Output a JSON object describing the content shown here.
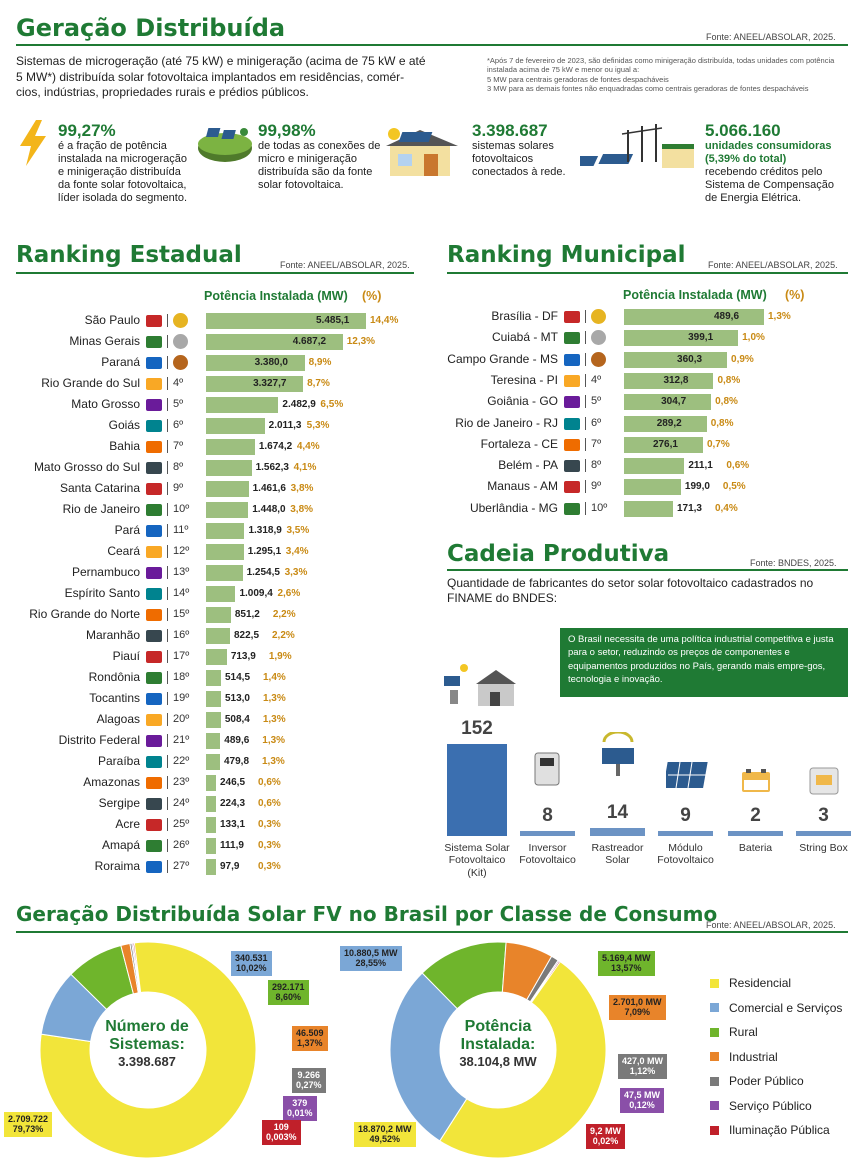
{
  "header": {
    "title": "Geração Distribuída",
    "source": "Fonte: ANEEL/ABSOLAR, 2025.",
    "intro": "Sistemas de microgeração (até 75 kW) e minigeração (acima de 75 kW e até 5 MW*) distribuída solar fotovoltaica implantados em residências, comér-cios, indústrias, propriedades rurais e prédios públicos.",
    "footnote_1": "*Após 7 de fevereiro de 2023, são definidas como minigeração distribuída, todas unidades com potência instalada acima de 75 kW e menor ou igual a:",
    "footnote_2": "5 MW para centrais geradoras de fontes despacháveis",
    "footnote_3": "3 MW para as demais fontes não enquadradas como centrais geradoras de fontes despacháveis"
  },
  "stats": [
    {
      "value": "99,27%",
      "text": "é a fração de potência instalada na microgeração e minigeração distribuída da fonte solar fotovoltaica, líder isolada do segmento.",
      "icon": "lightning-icon"
    },
    {
      "value": "99,98%",
      "text": "de todas as conexões de micro e minigeração distribuída são da fonte solar fotovoltaica.",
      "icon": "globe-solar-icon"
    },
    {
      "value": "3.398.687",
      "text": "sistemas solares fotovoltaicos conectados à rede.",
      "icon": "solar-house-icon"
    },
    {
      "value": "5.066.160",
      "text_bold": "unidades consumidoras (5,39% do total)",
      "text": "recebendo créditos pelo Sistema de Compensação de Energia Elétrica.",
      "icon": "power-grid-icon"
    }
  ],
  "ranking_estadual": {
    "title": "Ranking Estadual",
    "source": "Fonte: ANEEL/ABSOLAR, 2025.",
    "col_header": "Potência Instalada (MW)",
    "pct_header": "(%)",
    "rows": [
      {
        "name": "São Paulo",
        "pos": "",
        "value": 5485.1,
        "label": "5.485,1",
        "pct": "14,4%"
      },
      {
        "name": "Minas Gerais",
        "pos": "",
        "value": 4687.2,
        "label": "4.687,2",
        "pct": "12,3%"
      },
      {
        "name": "Paraná",
        "pos": "",
        "value": 3380.0,
        "label": "3.380,0",
        "pct": "8,9%"
      },
      {
        "name": "Rio Grande do Sul",
        "pos": "4º",
        "value": 3327.7,
        "label": "3.327,7",
        "pct": "8,7%"
      },
      {
        "name": "Mato Grosso",
        "pos": "5º",
        "value": 2482.9,
        "label": "2.482,9",
        "pct": "6,5%"
      },
      {
        "name": "Goiás",
        "pos": "6º",
        "value": 2011.3,
        "label": "2.011,3",
        "pct": "5,3%"
      },
      {
        "name": "Bahia",
        "pos": "7º",
        "value": 1674.2,
        "label": "1.674,2",
        "pct": "4,4%"
      },
      {
        "name": "Mato Grosso do Sul",
        "pos": "8º",
        "value": 1562.3,
        "label": "1.562,3",
        "pct": "4,1%"
      },
      {
        "name": "Santa Catarina",
        "pos": "9º",
        "value": 1461.6,
        "label": "1.461,6",
        "pct": "3,8%"
      },
      {
        "name": "Rio de Janeiro",
        "pos": "10º",
        "value": 1448.0,
        "label": "1.448,0",
        "pct": "3,8%"
      },
      {
        "name": "Pará",
        "pos": "11º",
        "value": 1318.9,
        "label": "1.318,9",
        "pct": "3,5%"
      },
      {
        "name": "Ceará",
        "pos": "12º",
        "value": 1295.1,
        "label": "1.295,1",
        "pct": "3,4%"
      },
      {
        "name": "Pernambuco",
        "pos": "13º",
        "value": 1254.5,
        "label": "1.254,5",
        "pct": "3,3%"
      },
      {
        "name": "Espírito Santo",
        "pos": "14º",
        "value": 1009.4,
        "label": "1.009,4",
        "pct": "2,6%"
      },
      {
        "name": "Rio Grande do Norte",
        "pos": "15º",
        "value": 851.2,
        "label": "851,2",
        "pct": "2,2%"
      },
      {
        "name": "Maranhão",
        "pos": "16º",
        "value": 822.5,
        "label": "822,5",
        "pct": "2,2%"
      },
      {
        "name": "Piauí",
        "pos": "17º",
        "value": 713.9,
        "label": "713,9",
        "pct": "1,9%"
      },
      {
        "name": "Rondônia",
        "pos": "18º",
        "value": 514.5,
        "label": "514,5",
        "pct": "1,4%"
      },
      {
        "name": "Tocantins",
        "pos": "19º",
        "value": 513.0,
        "label": "513,0",
        "pct": "1,3%"
      },
      {
        "name": "Alagoas",
        "pos": "20º",
        "value": 508.4,
        "label": "508,4",
        "pct": "1,3%"
      },
      {
        "name": "Distrito Federal",
        "pos": "21º",
        "value": 489.6,
        "label": "489,6",
        "pct": "1,3%"
      },
      {
        "name": "Paraíba",
        "pos": "22º",
        "value": 479.8,
        "label": "479,8",
        "pct": "1,3%"
      },
      {
        "name": "Amazonas",
        "pos": "23º",
        "value": 246.5,
        "label": "246,5",
        "pct": "0,6%"
      },
      {
        "name": "Sergipe",
        "pos": "24º",
        "value": 224.3,
        "label": "224,3",
        "pct": "0,6%"
      },
      {
        "name": "Acre",
        "pos": "25º",
        "value": 133.1,
        "label": "133,1",
        "pct": "0,3%"
      },
      {
        "name": "Amapá",
        "pos": "26º",
        "value": 111.9,
        "label": "111,9",
        "pct": "0,3%"
      },
      {
        "name": "Roraima",
        "pos": "27º",
        "value": 97.9,
        "label": "97,9",
        "pct": "0,3%"
      }
    ]
  },
  "ranking_municipal": {
    "title": "Ranking Municipal",
    "source": "Fonte: ANEEL/ABSOLAR, 2025.",
    "col_header": "Potência Instalada (MW)",
    "pct_header": "(%)",
    "rows": [
      {
        "name": "Brasília - DF",
        "pos": "",
        "value": 489.6,
        "label": "489,6",
        "pct": "1,3%"
      },
      {
        "name": "Cuiabá - MT",
        "pos": "",
        "value": 399.1,
        "label": "399,1",
        "pct": "1,0%"
      },
      {
        "name": "Campo Grande - MS",
        "pos": "",
        "value": 360.3,
        "label": "360,3",
        "pct": "0,9%"
      },
      {
        "name": "Teresina - PI",
        "pos": "4º",
        "value": 312.8,
        "label": "312,8",
        "pct": "0,8%"
      },
      {
        "name": "Goiânia - GO",
        "pos": "5º",
        "value": 304.7,
        "label": "304,7",
        "pct": "0,8%"
      },
      {
        "name": "Rio de Janeiro - RJ",
        "pos": "6º",
        "value": 289.2,
        "label": "289,2",
        "pct": "0,8%"
      },
      {
        "name": "Fortaleza - CE",
        "pos": "7º",
        "value": 276.1,
        "label": "276,1",
        "pct": "0,7%"
      },
      {
        "name": "Belém - PA",
        "pos": "8º",
        "value": 211.1,
        "label": "211,1",
        "pct": "0,6%"
      },
      {
        "name": "Manaus - AM",
        "pos": "9º",
        "value": 199.0,
        "label": "199,0",
        "pct": "0,5%"
      },
      {
        "name": "Uberlândia - MG",
        "pos": "10º",
        "value": 171.3,
        "label": "171,3",
        "pct": "0,4%"
      }
    ]
  },
  "cadeia": {
    "title": "Cadeia Produtiva",
    "source": "Fonte: BNDES, 2025.",
    "subtitle": "Quantidade de fabricantes do setor solar fotovoltaico cadastrados no FINAME do BNDES:",
    "note": "O Brasil necessita de uma política industrial competitiva e justa para o setor, reduzindo os preços de componentes e equipamentos produzidos no País, gerando mais empre-gos, tecnologia e inovação."
  },
  "classe": {
    "title": "Geração Distribuída Solar FV no Brasil por Classe de Consumo",
    "source": "Fonte: ANEEL/ABSOLAR, 2025.",
    "donut1_center_1": "Número de",
    "donut1_center_2": "Sistemas:",
    "donut1_center_3": "3.398.687",
    "donut2_center_1": "Potência",
    "donut2_center_2": "Instalada:",
    "donut2_center_3": "38.104,8 MW"
  },
  "chart_data": [
    {
      "type": "bar",
      "title": "Ranking Estadual",
      "ylabel": "Potência Instalada (MW)",
      "categories": [
        "São Paulo",
        "Minas Gerais",
        "Paraná",
        "Rio Grande do Sul",
        "Mato Grosso",
        "Goiás",
        "Bahia",
        "Mato Grosso do Sul",
        "Santa Catarina",
        "Rio de Janeiro",
        "Pará",
        "Ceará",
        "Pernambuco",
        "Espírito Santo",
        "Rio Grande do Norte",
        "Maranhão",
        "Piauí",
        "Rondônia",
        "Tocantins",
        "Alagoas",
        "Distrito Federal",
        "Paraíba",
        "Amazonas",
        "Sergipe",
        "Acre",
        "Amapá",
        "Roraima"
      ],
      "values": [
        5485.1,
        4687.2,
        3380.0,
        3327.7,
        2482.9,
        2011.3,
        1674.2,
        1562.3,
        1461.6,
        1448.0,
        1318.9,
        1295.1,
        1254.5,
        1009.4,
        851.2,
        822.5,
        713.9,
        514.5,
        513.0,
        508.4,
        489.6,
        479.8,
        246.5,
        224.3,
        133.1,
        111.9,
        97.9
      ]
    },
    {
      "type": "bar",
      "title": "Ranking Municipal",
      "ylabel": "Potência Instalada (MW)",
      "categories": [
        "Brasília - DF",
        "Cuiabá - MT",
        "Campo Grande - MS",
        "Teresina - PI",
        "Goiânia - GO",
        "Rio de Janeiro - RJ",
        "Fortaleza - CE",
        "Belém - PA",
        "Manaus - AM",
        "Uberlândia - MG"
      ],
      "values": [
        489.6,
        399.1,
        360.3,
        312.8,
        304.7,
        289.2,
        276.1,
        211.1,
        199.0,
        171.3
      ]
    },
    {
      "type": "bar",
      "title": "Cadeia Produtiva",
      "categories": [
        "Sistema Solar Fotovoltaico (Kit)",
        "Inversor Fotovoltaico",
        "Rastreador Solar",
        "Módulo Fotovoltaico",
        "Bateria",
        "String Box"
      ],
      "values": [
        152,
        8,
        14,
        9,
        2,
        3
      ]
    },
    {
      "type": "pie",
      "title": "Número de Sistemas: 3.398.687",
      "categories": [
        "Residencial",
        "Comercial e Serviços",
        "Rural",
        "Industrial",
        "Poder Público",
        "Serviço Público",
        "Iluminação Pública"
      ],
      "values": [
        2709722,
        340531,
        292171,
        46509,
        9266,
        379,
        109
      ],
      "labels": [
        "2.709.722",
        "340.531",
        "292.171",
        "46.509",
        "9.266",
        "379",
        "109"
      ],
      "percents": [
        "79,73%",
        "10,02%",
        "8,60%",
        "1,37%",
        "0,27%",
        "0,01%",
        "0,003%"
      ]
    },
    {
      "type": "pie",
      "title": "Potência Instalada: 38.104,8 MW",
      "categories": [
        "Residencial",
        "Comercial e Serviços",
        "Rural",
        "Industrial",
        "Poder Público",
        "Serviço Público",
        "Iluminação Pública"
      ],
      "values": [
        18870.2,
        10880.5,
        5169.4,
        2701.0,
        427.0,
        47.5,
        9.2
      ],
      "labels": [
        "18.870,2 MW",
        "10.880,5 MW",
        "5.169,4 MW",
        "2.701,0 MW",
        "427,0 MW",
        "47,5 MW",
        "9,2 MW"
      ],
      "percents": [
        "49,52%",
        "28,55%",
        "13,57%",
        "7,09%",
        "1,12%",
        "0,12%",
        "0,02%"
      ]
    }
  ],
  "legend": [
    {
      "label": "Residencial",
      "color": "#f2e53a"
    },
    {
      "label": "Comercial e Serviços",
      "color": "#7ba7d6"
    },
    {
      "label": "Rural",
      "color": "#6fb52c"
    },
    {
      "label": "Industrial",
      "color": "#e8842a"
    },
    {
      "label": "Poder Público",
      "color": "#7a7a7a"
    },
    {
      "label": "Serviço Público",
      "color": "#8a4fa8"
    },
    {
      "label": "Iluminação Pública",
      "color": "#c0202a"
    }
  ],
  "colors": {
    "brand_green": "#1f7a34",
    "bar_green": "#9dbf7f",
    "pct_gold": "#c98a14",
    "cadeia_blue": "#3b6fb0"
  }
}
